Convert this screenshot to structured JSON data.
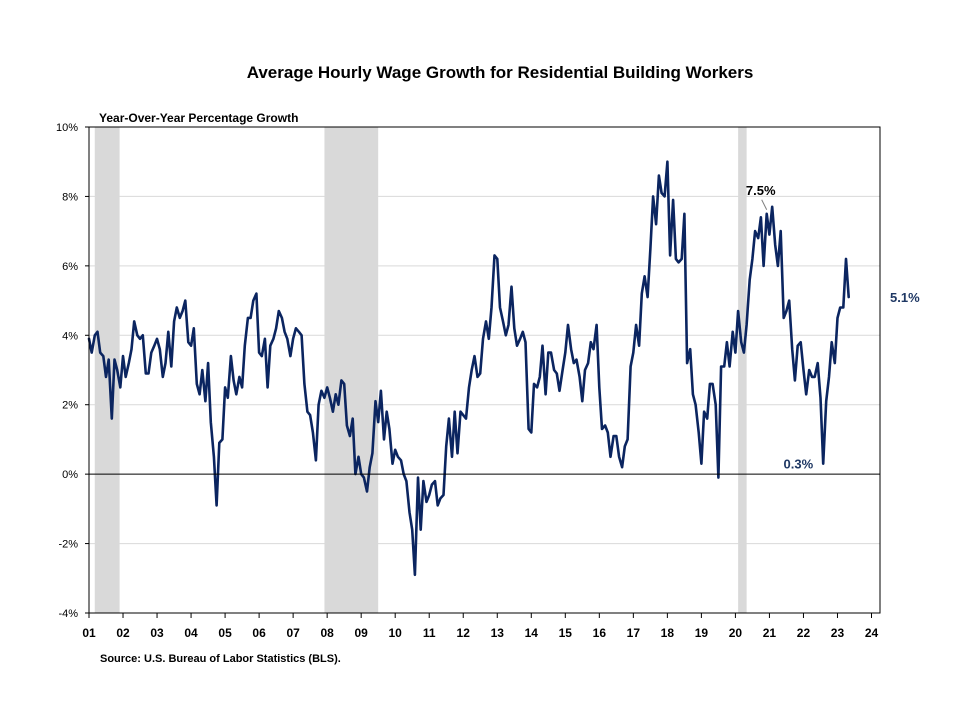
{
  "chart_data": {
    "type": "line",
    "title": "Average Hourly Wage Growth for Residential Building Workers",
    "ylabel": "Year-Over-Year Percentage Growth",
    "xlabel": "",
    "source": "Source: U.S. Bureau of Labor Statistics (BLS).",
    "ylim": [
      -4,
      10
    ],
    "xlim": [
      2001.0,
      2024.25
    ],
    "y_ticks": [
      {
        "value": 10,
        "label": "10%"
      },
      {
        "value": 8,
        "label": "8%"
      },
      {
        "value": 6,
        "label": "6%"
      },
      {
        "value": 4,
        "label": "4%"
      },
      {
        "value": 2,
        "label": "2%"
      },
      {
        "value": 0,
        "label": "0%"
      },
      {
        "value": -2,
        "label": "-2%"
      },
      {
        "value": -4,
        "label": "-4%"
      }
    ],
    "x_ticks": [
      {
        "value": 2001,
        "label": "01"
      },
      {
        "value": 2002,
        "label": "02"
      },
      {
        "value": 2003,
        "label": "03"
      },
      {
        "value": 2004,
        "label": "04"
      },
      {
        "value": 2005,
        "label": "05"
      },
      {
        "value": 2006,
        "label": "06"
      },
      {
        "value": 2007,
        "label": "07"
      },
      {
        "value": 2008,
        "label": "08"
      },
      {
        "value": 2009,
        "label": "09"
      },
      {
        "value": 2010,
        "label": "10"
      },
      {
        "value": 2011,
        "label": "11"
      },
      {
        "value": 2012,
        "label": "12"
      },
      {
        "value": 2013,
        "label": "13"
      },
      {
        "value": 2014,
        "label": "14"
      },
      {
        "value": 2015,
        "label": "15"
      },
      {
        "value": 2016,
        "label": "16"
      },
      {
        "value": 2017,
        "label": "17"
      },
      {
        "value": 2018,
        "label": "18"
      },
      {
        "value": 2019,
        "label": "19"
      },
      {
        "value": 2020,
        "label": "20"
      },
      {
        "value": 2021,
        "label": "21"
      },
      {
        "value": 2022,
        "label": "22"
      },
      {
        "value": 2023,
        "label": "23"
      },
      {
        "value": 2024,
        "label": "24"
      }
    ],
    "recessions": [
      {
        "start": 2001.17,
        "end": 2001.9
      },
      {
        "start": 2007.92,
        "end": 2009.5
      },
      {
        "start": 2020.08,
        "end": 2020.33
      }
    ],
    "grid": true,
    "colors": {
      "line": "#0b2560",
      "recession": "#d9d9d9",
      "grid": "#d9d9d9",
      "axis": "#000000",
      "label": "#1f3864"
    },
    "series": [
      {
        "points": [
          [
            2001.0,
            3.9
          ],
          [
            2001.08,
            3.5
          ],
          [
            2001.17,
            4.0
          ],
          [
            2001.25,
            4.1
          ],
          [
            2001.33,
            3.5
          ],
          [
            2001.42,
            3.4
          ],
          [
            2001.5,
            2.8
          ],
          [
            2001.58,
            3.3
          ],
          [
            2001.67,
            1.6
          ],
          [
            2001.75,
            3.3
          ],
          [
            2001.83,
            3.0
          ],
          [
            2001.92,
            2.5
          ],
          [
            2002.0,
            3.4
          ],
          [
            2002.08,
            2.8
          ],
          [
            2002.17,
            3.2
          ],
          [
            2002.25,
            3.6
          ],
          [
            2002.33,
            4.4
          ],
          [
            2002.42,
            4.0
          ],
          [
            2002.5,
            3.9
          ],
          [
            2002.58,
            4.0
          ],
          [
            2002.67,
            2.9
          ],
          [
            2002.75,
            2.9
          ],
          [
            2002.83,
            3.5
          ],
          [
            2002.92,
            3.7
          ],
          [
            2003.0,
            3.9
          ],
          [
            2003.08,
            3.6
          ],
          [
            2003.17,
            2.8
          ],
          [
            2003.25,
            3.2
          ],
          [
            2003.33,
            4.1
          ],
          [
            2003.42,
            3.1
          ],
          [
            2003.5,
            4.4
          ],
          [
            2003.58,
            4.8
          ],
          [
            2003.67,
            4.5
          ],
          [
            2003.75,
            4.7
          ],
          [
            2003.83,
            5.0
          ],
          [
            2003.92,
            3.8
          ],
          [
            2004.0,
            3.7
          ],
          [
            2004.08,
            4.2
          ],
          [
            2004.17,
            2.6
          ],
          [
            2004.25,
            2.3
          ],
          [
            2004.33,
            3.0
          ],
          [
            2004.42,
            2.1
          ],
          [
            2004.5,
            3.2
          ],
          [
            2004.58,
            1.5
          ],
          [
            2004.67,
            0.5
          ],
          [
            2004.75,
            -0.9
          ],
          [
            2004.83,
            0.9
          ],
          [
            2004.92,
            1.0
          ],
          [
            2005.0,
            2.5
          ],
          [
            2005.08,
            2.2
          ],
          [
            2005.17,
            3.4
          ],
          [
            2005.25,
            2.7
          ],
          [
            2005.33,
            2.3
          ],
          [
            2005.42,
            2.8
          ],
          [
            2005.5,
            2.5
          ],
          [
            2005.58,
            3.7
          ],
          [
            2005.67,
            4.5
          ],
          [
            2005.75,
            4.5
          ],
          [
            2005.83,
            5.0
          ],
          [
            2005.92,
            5.2
          ],
          [
            2006.0,
            3.5
          ],
          [
            2006.08,
            3.4
          ],
          [
            2006.17,
            3.9
          ],
          [
            2006.25,
            2.5
          ],
          [
            2006.33,
            3.7
          ],
          [
            2006.42,
            3.9
          ],
          [
            2006.5,
            4.2
          ],
          [
            2006.58,
            4.7
          ],
          [
            2006.67,
            4.5
          ],
          [
            2006.75,
            4.1
          ],
          [
            2006.83,
            3.9
          ],
          [
            2006.92,
            3.4
          ],
          [
            2007.0,
            3.9
          ],
          [
            2007.08,
            4.2
          ],
          [
            2007.17,
            4.1
          ],
          [
            2007.25,
            4.0
          ],
          [
            2007.33,
            2.6
          ],
          [
            2007.42,
            1.8
          ],
          [
            2007.5,
            1.7
          ],
          [
            2007.58,
            1.2
          ],
          [
            2007.67,
            0.4
          ],
          [
            2007.75,
            2.0
          ],
          [
            2007.83,
            2.4
          ],
          [
            2007.92,
            2.2
          ],
          [
            2008.0,
            2.5
          ],
          [
            2008.08,
            2.2
          ],
          [
            2008.17,
            1.8
          ],
          [
            2008.25,
            2.3
          ],
          [
            2008.33,
            2.0
          ],
          [
            2008.42,
            2.7
          ],
          [
            2008.5,
            2.6
          ],
          [
            2008.58,
            1.4
          ],
          [
            2008.67,
            1.1
          ],
          [
            2008.75,
            1.6
          ],
          [
            2008.83,
            0.0
          ],
          [
            2008.92,
            0.5
          ],
          [
            2009.0,
            0.0
          ],
          [
            2009.08,
            -0.1
          ],
          [
            2009.17,
            -0.5
          ],
          [
            2009.25,
            0.2
          ],
          [
            2009.33,
            0.6
          ],
          [
            2009.42,
            2.1
          ],
          [
            2009.5,
            1.5
          ],
          [
            2009.58,
            2.4
          ],
          [
            2009.67,
            1.0
          ],
          [
            2009.75,
            1.8
          ],
          [
            2009.83,
            1.3
          ],
          [
            2009.92,
            0.3
          ],
          [
            2010.0,
            0.7
          ],
          [
            2010.08,
            0.5
          ],
          [
            2010.17,
            0.4
          ],
          [
            2010.25,
            0.0
          ],
          [
            2010.33,
            -0.2
          ],
          [
            2010.42,
            -1.1
          ],
          [
            2010.5,
            -1.6
          ],
          [
            2010.58,
            -2.9
          ],
          [
            2010.67,
            -0.1
          ],
          [
            2010.75,
            -1.6
          ],
          [
            2010.83,
            -0.2
          ],
          [
            2010.92,
            -0.8
          ],
          [
            2011.0,
            -0.6
          ],
          [
            2011.08,
            -0.3
          ],
          [
            2011.17,
            -0.2
          ],
          [
            2011.25,
            -0.9
          ],
          [
            2011.33,
            -0.7
          ],
          [
            2011.42,
            -0.6
          ],
          [
            2011.5,
            0.8
          ],
          [
            2011.58,
            1.6
          ],
          [
            2011.67,
            0.5
          ],
          [
            2011.75,
            1.8
          ],
          [
            2011.83,
            0.6
          ],
          [
            2011.92,
            1.8
          ],
          [
            2012.0,
            1.7
          ],
          [
            2012.08,
            1.6
          ],
          [
            2012.17,
            2.5
          ],
          [
            2012.25,
            3.0
          ],
          [
            2012.33,
            3.4
          ],
          [
            2012.42,
            2.8
          ],
          [
            2012.5,
            2.9
          ],
          [
            2012.58,
            3.9
          ],
          [
            2012.67,
            4.4
          ],
          [
            2012.75,
            3.9
          ],
          [
            2012.83,
            4.8
          ],
          [
            2012.92,
            6.3
          ],
          [
            2013.0,
            6.2
          ],
          [
            2013.08,
            4.8
          ],
          [
            2013.17,
            4.4
          ],
          [
            2013.25,
            4.0
          ],
          [
            2013.33,
            4.3
          ],
          [
            2013.42,
            5.4
          ],
          [
            2013.5,
            4.2
          ],
          [
            2013.58,
            3.7
          ],
          [
            2013.67,
            3.9
          ],
          [
            2013.75,
            4.1
          ],
          [
            2013.83,
            3.8
          ],
          [
            2013.92,
            1.3
          ],
          [
            2014.0,
            1.2
          ],
          [
            2014.08,
            2.6
          ],
          [
            2014.17,
            2.5
          ],
          [
            2014.25,
            2.8
          ],
          [
            2014.33,
            3.7
          ],
          [
            2014.42,
            2.3
          ],
          [
            2014.5,
            3.5
          ],
          [
            2014.58,
            3.5
          ],
          [
            2014.67,
            3.0
          ],
          [
            2014.75,
            2.9
          ],
          [
            2014.83,
            2.4
          ],
          [
            2014.92,
            3.0
          ],
          [
            2015.0,
            3.5
          ],
          [
            2015.08,
            4.3
          ],
          [
            2015.17,
            3.6
          ],
          [
            2015.25,
            3.2
          ],
          [
            2015.33,
            3.3
          ],
          [
            2015.42,
            2.8
          ],
          [
            2015.5,
            2.1
          ],
          [
            2015.58,
            3.0
          ],
          [
            2015.67,
            3.2
          ],
          [
            2015.75,
            3.8
          ],
          [
            2015.83,
            3.6
          ],
          [
            2015.92,
            4.3
          ],
          [
            2016.0,
            2.5
          ],
          [
            2016.08,
            1.3
          ],
          [
            2016.17,
            1.4
          ],
          [
            2016.25,
            1.2
          ],
          [
            2016.33,
            0.5
          ],
          [
            2016.42,
            1.1
          ],
          [
            2016.5,
            1.1
          ],
          [
            2016.58,
            0.5
          ],
          [
            2016.67,
            0.2
          ],
          [
            2016.75,
            0.8
          ],
          [
            2016.83,
            1.0
          ],
          [
            2016.92,
            3.1
          ],
          [
            2017.0,
            3.5
          ],
          [
            2017.08,
            4.3
          ],
          [
            2017.17,
            3.7
          ],
          [
            2017.25,
            5.2
          ],
          [
            2017.33,
            5.7
          ],
          [
            2017.42,
            5.1
          ],
          [
            2017.5,
            6.5
          ],
          [
            2017.58,
            8.0
          ],
          [
            2017.67,
            7.2
          ],
          [
            2017.75,
            8.6
          ],
          [
            2017.83,
            8.1
          ],
          [
            2017.92,
            8.0
          ],
          [
            2018.0,
            9.0
          ],
          [
            2018.08,
            6.3
          ],
          [
            2018.17,
            7.9
          ],
          [
            2018.25,
            6.2
          ],
          [
            2018.33,
            6.1
          ],
          [
            2018.42,
            6.2
          ],
          [
            2018.5,
            7.5
          ],
          [
            2018.58,
            3.2
          ],
          [
            2018.67,
            3.6
          ],
          [
            2018.75,
            2.3
          ],
          [
            2018.83,
            2.0
          ],
          [
            2018.92,
            1.2
          ],
          [
            2019.0,
            0.3
          ],
          [
            2019.08,
            1.8
          ],
          [
            2019.17,
            1.6
          ],
          [
            2019.25,
            2.6
          ],
          [
            2019.33,
            2.6
          ],
          [
            2019.42,
            2.0
          ],
          [
            2019.5,
            -0.1
          ],
          [
            2019.58,
            3.1
          ],
          [
            2019.67,
            3.1
          ],
          [
            2019.75,
            3.8
          ],
          [
            2019.83,
            3.1
          ],
          [
            2019.92,
            4.1
          ],
          [
            2020.0,
            3.5
          ],
          [
            2020.08,
            4.7
          ],
          [
            2020.17,
            3.8
          ],
          [
            2020.25,
            3.5
          ],
          [
            2020.33,
            4.3
          ],
          [
            2020.42,
            5.6
          ],
          [
            2020.5,
            6.2
          ],
          [
            2020.58,
            7.0
          ],
          [
            2020.67,
            6.8
          ],
          [
            2020.75,
            7.4
          ],
          [
            2020.83,
            6.0
          ],
          [
            2020.92,
            7.5
          ],
          [
            2021.0,
            6.9
          ],
          [
            2021.08,
            7.7
          ],
          [
            2021.17,
            6.6
          ],
          [
            2021.25,
            6.0
          ],
          [
            2021.33,
            7.0
          ],
          [
            2021.42,
            4.5
          ],
          [
            2021.5,
            4.7
          ],
          [
            2021.58,
            5.0
          ],
          [
            2021.67,
            3.6
          ],
          [
            2021.75,
            2.7
          ],
          [
            2021.83,
            3.7
          ],
          [
            2021.92,
            3.8
          ],
          [
            2022.0,
            3.0
          ],
          [
            2022.08,
            2.3
          ],
          [
            2022.17,
            3.0
          ],
          [
            2022.25,
            2.8
          ],
          [
            2022.33,
            2.8
          ],
          [
            2022.42,
            3.2
          ],
          [
            2022.5,
            2.2
          ],
          [
            2022.58,
            0.3
          ],
          [
            2022.67,
            2.1
          ],
          [
            2022.75,
            2.8
          ],
          [
            2022.83,
            3.8
          ],
          [
            2022.92,
            3.2
          ],
          [
            2023.0,
            4.5
          ],
          [
            2023.08,
            4.8
          ],
          [
            2023.17,
            4.8
          ],
          [
            2023.25,
            6.2
          ],
          [
            2023.33,
            5.1
          ]
        ]
      }
    ],
    "annotations": [
      {
        "text": "7.5%",
        "x": 2020.92,
        "y": 7.5,
        "position": "above-left"
      },
      {
        "text": "0.3%",
        "x": 2022.58,
        "y": 0.3,
        "position": "left"
      },
      {
        "text": "5.1%",
        "x": 2023.33,
        "y": 5.1,
        "position": "right"
      }
    ]
  }
}
